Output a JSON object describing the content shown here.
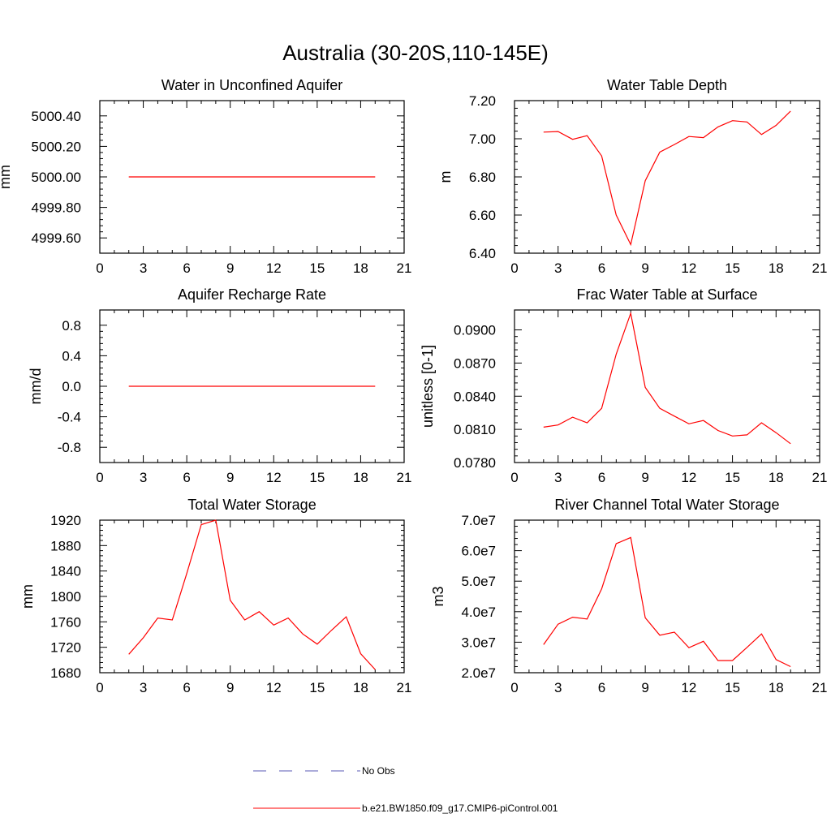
{
  "figure": {
    "title": "Australia (30-20S,110-145E)"
  },
  "legend": {
    "entries": [
      {
        "label": "No Obs",
        "color": "#5a5ab4",
        "style": "dashed"
      },
      {
        "label": "b.e21.BW1850.f09_g17.CMIP6-piControl.001",
        "color": "#ff0000",
        "style": "solid"
      }
    ]
  },
  "chart_data": [
    {
      "type": "line",
      "title": "Water in Unconfined Aquifer",
      "ylabel": "mm",
      "xlim": [
        0,
        21
      ],
      "ylim": [
        4999.5,
        5000.5
      ],
      "xticks": [
        0,
        3,
        6,
        9,
        12,
        15,
        18,
        21
      ],
      "yticks": [
        4999.6,
        4999.8,
        5000.0,
        5000.2,
        5000.4
      ],
      "ytick_labels": [
        "4999.60",
        "4999.80",
        "5000.00",
        "5000.20",
        "5000.40"
      ],
      "x": [
        2,
        3,
        4,
        5,
        6,
        7,
        8,
        9,
        10,
        11,
        12,
        13,
        14,
        15,
        16,
        17,
        18,
        19
      ],
      "series": [
        {
          "color": "#ff0000",
          "values": [
            5000,
            5000,
            5000,
            5000,
            5000,
            5000,
            5000,
            5000,
            5000,
            5000,
            5000,
            5000,
            5000,
            5000,
            5000,
            5000,
            5000,
            5000
          ]
        }
      ]
    },
    {
      "type": "line",
      "title": "Water Table Depth",
      "ylabel": "m",
      "xlim": [
        0,
        21
      ],
      "ylim": [
        6.4,
        7.2
      ],
      "xticks": [
        0,
        3,
        6,
        9,
        12,
        15,
        18,
        21
      ],
      "yticks": [
        6.4,
        6.6,
        6.8,
        7.0,
        7.2
      ],
      "ytick_labels": [
        "6.40",
        "6.60",
        "6.80",
        "7.00",
        "7.20"
      ],
      "x": [
        2,
        3,
        4,
        5,
        6,
        7,
        8,
        9,
        10,
        11,
        12,
        13,
        14,
        15,
        16,
        17,
        18,
        19
      ],
      "series": [
        {
          "color": "#ff0000",
          "values": [
            7.035,
            7.038,
            6.997,
            7.016,
            6.91,
            6.6,
            6.445,
            6.78,
            6.93,
            6.97,
            7.012,
            7.006,
            7.062,
            7.095,
            7.088,
            7.022,
            7.07,
            7.145
          ]
        }
      ]
    },
    {
      "type": "line",
      "title": "Aquifer Recharge Rate",
      "ylabel": "mm/d",
      "xlim": [
        0,
        21
      ],
      "ylim": [
        -1.0,
        1.0
      ],
      "xticks": [
        0,
        3,
        6,
        9,
        12,
        15,
        18,
        21
      ],
      "yticks": [
        -0.8,
        -0.4,
        0.0,
        0.4,
        0.8
      ],
      "ytick_labels": [
        "-0.8",
        "-0.4",
        "0.0",
        "0.4",
        "0.8"
      ],
      "x": [
        2,
        3,
        4,
        5,
        6,
        7,
        8,
        9,
        10,
        11,
        12,
        13,
        14,
        15,
        16,
        17,
        18,
        19
      ],
      "series": [
        {
          "color": "#ff0000",
          "values": [
            0,
            0,
            0,
            0,
            0,
            0,
            0,
            0,
            0,
            0,
            0,
            0,
            0,
            0,
            0,
            0,
            0,
            0
          ]
        }
      ]
    },
    {
      "type": "line",
      "title": "Frac Water Table at Surface",
      "ylabel": "unitless [0-1]",
      "xlim": [
        0,
        21
      ],
      "ylim": [
        0.078,
        0.0918
      ],
      "xticks": [
        0,
        3,
        6,
        9,
        12,
        15,
        18,
        21
      ],
      "yticks": [
        0.078,
        0.081,
        0.084,
        0.087,
        0.09
      ],
      "ytick_labels": [
        "0.0780",
        "0.0810",
        "0.0840",
        "0.0870",
        "0.0900"
      ],
      "x": [
        2,
        3,
        4,
        5,
        6,
        7,
        8,
        9,
        10,
        11,
        12,
        13,
        14,
        15,
        16,
        17,
        18,
        19
      ],
      "series": [
        {
          "color": "#ff0000",
          "values": [
            0.0812,
            0.0814,
            0.0821,
            0.0816,
            0.0829,
            0.0878,
            0.0915,
            0.0848,
            0.0829,
            0.0822,
            0.0815,
            0.0818,
            0.0809,
            0.0804,
            0.0805,
            0.0816,
            0.0807,
            0.0797
          ]
        }
      ]
    },
    {
      "type": "line",
      "title": "Total Water Storage",
      "ylabel": "mm",
      "xlim": [
        0,
        21
      ],
      "ylim": [
        1680,
        1920
      ],
      "xticks": [
        0,
        3,
        6,
        9,
        12,
        15,
        18,
        21
      ],
      "yticks": [
        1680,
        1720,
        1760,
        1800,
        1840,
        1880,
        1920
      ],
      "ytick_labels": [
        "1680",
        "1720",
        "1760",
        "1800",
        "1840",
        "1880",
        "1920"
      ],
      "x": [
        2,
        3,
        4,
        5,
        6,
        7,
        8,
        9,
        10,
        11,
        12,
        13,
        14,
        15,
        16,
        17,
        18,
        19
      ],
      "series": [
        {
          "color": "#ff0000",
          "values": [
            1709,
            1735,
            1766,
            1763,
            1836,
            1913,
            1920,
            1794,
            1763,
            1776,
            1755,
            1766,
            1741,
            1725,
            1747,
            1768,
            1710,
            1685
          ]
        }
      ]
    },
    {
      "type": "line",
      "title": "River Channel Total Water Storage",
      "ylabel": "m3",
      "xlim": [
        0,
        21
      ],
      "ylim": [
        20000000,
        70000000
      ],
      "xticks": [
        0,
        3,
        6,
        9,
        12,
        15,
        18,
        21
      ],
      "yticks": [
        20000000,
        30000000,
        40000000,
        50000000,
        60000000,
        70000000
      ],
      "ytick_labels": [
        "2.0e7",
        "3.0e7",
        "4.0e7",
        "5.0e7",
        "6.0e7",
        "7.0e7"
      ],
      "x": [
        2,
        3,
        4,
        5,
        6,
        7,
        8,
        9,
        10,
        11,
        12,
        13,
        14,
        15,
        16,
        17,
        18,
        19
      ],
      "series": [
        {
          "color": "#ff0000",
          "values": [
            29200000,
            35900000,
            38200000,
            37600000,
            47500000,
            62300000,
            64300000,
            38000000,
            32300000,
            33300000,
            28200000,
            30300000,
            24000000,
            24000000,
            28300000,
            32700000,
            24300000,
            22000000
          ]
        }
      ]
    }
  ]
}
